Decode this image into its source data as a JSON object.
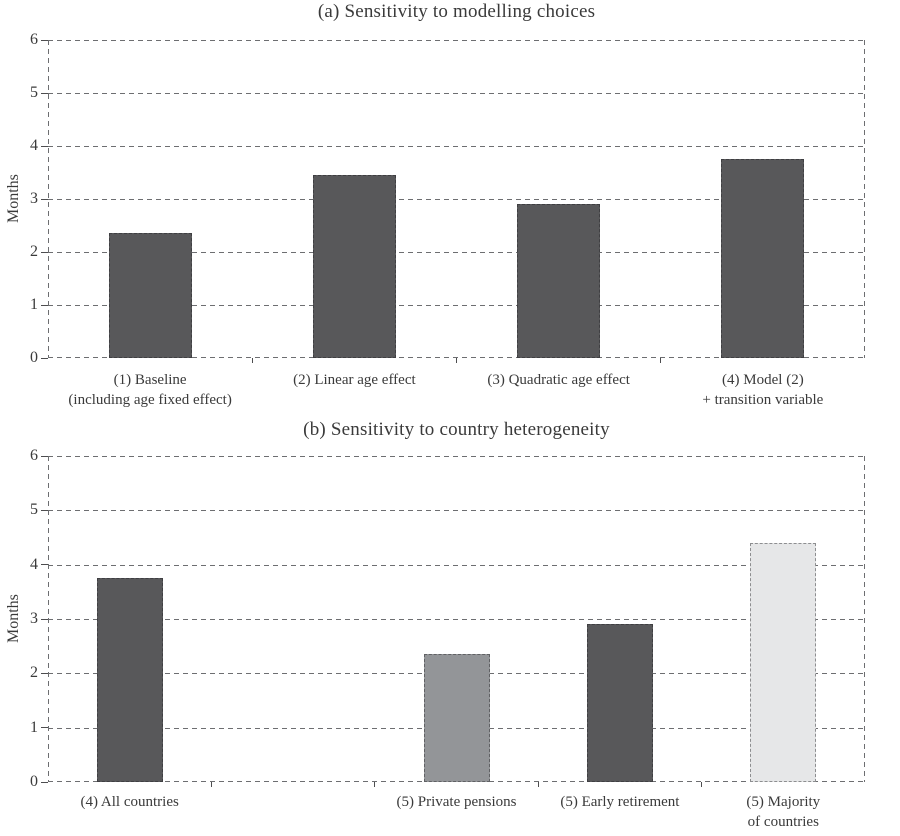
{
  "figure": {
    "background": "#ffffff",
    "text_color": "#3a3a3a",
    "grid_color": "#6d6e71",
    "tick_color": "#4d4d4f"
  },
  "chart_data": [
    {
      "type": "bar",
      "title": "(a) Sensitivity to modelling choices",
      "xlabel": "",
      "ylabel": "Months",
      "ylim": [
        0,
        6
      ],
      "yticks": [
        0,
        1,
        2,
        3,
        4,
        5,
        6
      ],
      "grid": "horizontal-dashed",
      "legend": "none",
      "categories": [
        "(1) Baseline\n(including age fixed effect)",
        "(2) Linear age effect",
        "(3) Quadratic age effect",
        "(4) Model (2)\n+ transition variable"
      ],
      "values": [
        2.35,
        3.45,
        2.9,
        3.75
      ],
      "bar_colors": [
        "#58585a",
        "#58585a",
        "#58585a",
        "#58585a"
      ],
      "n_slots": 4,
      "slot_index": [
        0,
        1,
        2,
        3
      ]
    },
    {
      "type": "bar",
      "title": "(b) Sensitivity to country heterogeneity",
      "xlabel": "",
      "ylabel": "Months",
      "ylim": [
        0,
        6
      ],
      "yticks": [
        0,
        1,
        2,
        3,
        4,
        5,
        6
      ],
      "grid": "horizontal-dashed",
      "legend": "none",
      "categories": [
        "(4) All countries",
        "(5) Private pensions",
        "(5) Early retirement",
        "(5) Majority\nof countries"
      ],
      "values": [
        3.75,
        2.35,
        2.9,
        4.4
      ],
      "bar_colors": [
        "#58585a",
        "#939598",
        "#58585a",
        "#e6e7e8"
      ],
      "n_slots": 5,
      "slot_index": [
        0,
        2,
        3,
        4
      ]
    }
  ]
}
